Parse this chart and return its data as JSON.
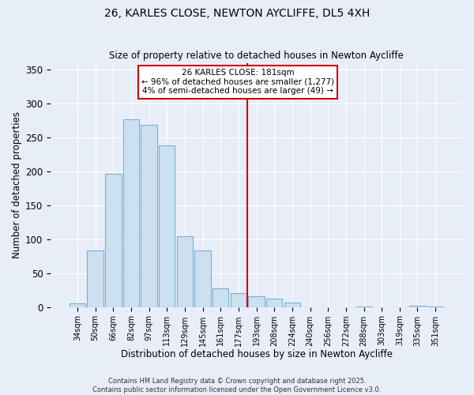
{
  "title": "26, KARLES CLOSE, NEWTON AYCLIFFE, DL5 4XH",
  "subtitle": "Size of property relative to detached houses in Newton Aycliffe",
  "xlabel": "Distribution of detached houses by size in Newton Aycliffe",
  "ylabel": "Number of detached properties",
  "bar_labels": [
    "34sqm",
    "50sqm",
    "66sqm",
    "82sqm",
    "97sqm",
    "113sqm",
    "129sqm",
    "145sqm",
    "161sqm",
    "177sqm",
    "193sqm",
    "208sqm",
    "224sqm",
    "240sqm",
    "256sqm",
    "272sqm",
    "288sqm",
    "303sqm",
    "319sqm",
    "335sqm",
    "351sqm"
  ],
  "bar_values": [
    5,
    83,
    196,
    277,
    269,
    238,
    104,
    83,
    27,
    20,
    16,
    12,
    6,
    0,
    0,
    0,
    1,
    0,
    0,
    2,
    1
  ],
  "bar_color": "#cce0f0",
  "bar_edge_color": "#7ab0d4",
  "ylim": [
    0,
    360
  ],
  "yticks": [
    0,
    50,
    100,
    150,
    200,
    250,
    300,
    350
  ],
  "vline_color": "#cc0000",
  "annotation_title": "26 KARLES CLOSE: 181sqm",
  "annotation_line1": "← 96% of detached houses are smaller (1,277)",
  "annotation_line2": "4% of semi-detached houses are larger (49) →",
  "footer1": "Contains HM Land Registry data © Crown copyright and database right 2025.",
  "footer2": "Contains public sector information licensed under the Open Government Licence v3.0.",
  "background_color": "#e8eef8",
  "grid_color": "#ffffff"
}
